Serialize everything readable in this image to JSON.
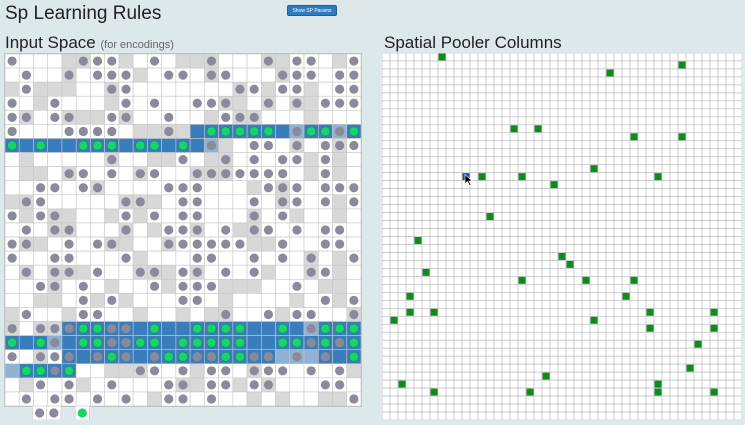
{
  "header": {
    "title": "Sp Learning Rules",
    "show_params_button": "Show SP Params"
  },
  "input_space": {
    "title": "Input Space",
    "subtitle": "(for encodings)"
  },
  "spatial_pooler": {
    "title": "Spatial Pooler Columns",
    "selected_column": "cursor-hover"
  },
  "colors": {
    "background": "#dde8eb",
    "button": "#2f7bbf",
    "grey_cell": "#d8d8d8",
    "blue_cell": "#3a7dbc",
    "light_blue_cell": "#8fb2d4",
    "grey_dot": "#8a8a9a",
    "active_dot": "#19d46a",
    "active_column": "#0e8a1e"
  }
}
